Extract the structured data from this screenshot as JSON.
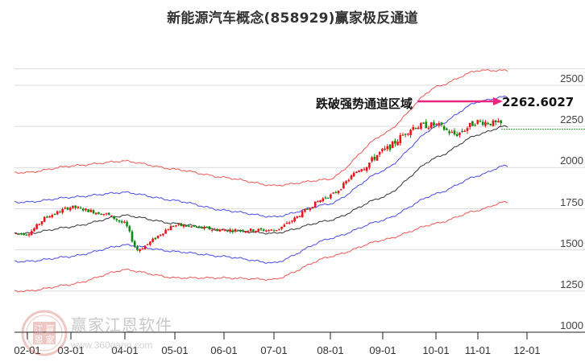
{
  "title": "新能源汽车概念(858929)赢家极反通道",
  "annotation": {
    "text": "跌破强势通道区域",
    "value": "2262.6027",
    "arrow_color": "#e8277e",
    "level_line_color": "#2e9b2e"
  },
  "watermark": {
    "name": "赢家江恩软件",
    "url": "www.360gann.com",
    "seal_chars": [
      "江",
      "赢",
      "恩",
      "家"
    ]
  },
  "colors": {
    "up": "#e8141a",
    "down": "#118a11",
    "outer_band": "#e83a3a",
    "inner_band": "#2a2ae0",
    "mid_line": "#222222",
    "grid": "#dddddd",
    "axis": "#222222"
  },
  "chart_data": {
    "type": "candlestick",
    "title": "新能源汽车概念(858929)赢家极反通道",
    "xlabel": "",
    "ylabel": "",
    "ylim": [
      1000,
      2600
    ],
    "y_ticks": [
      2500,
      2250,
      2000,
      1750,
      1500,
      1250,
      1000
    ],
    "x_ticks": [
      "02-01",
      "03-01",
      "04-01",
      "05-01",
      "06-01",
      "07-01",
      "08-01",
      "09-01",
      "10-01",
      "11-01",
      "12-01"
    ],
    "grid": true,
    "annotations": [
      {
        "text": "跌破强势通道区域",
        "type": "label"
      },
      {
        "text": "2262.6027",
        "type": "arrow-target",
        "value": 2262.6027
      }
    ],
    "series": [
      {
        "name": "outer_upper_band",
        "color": "#e83a3a",
        "x": [
          "02-01",
          "03-01",
          "04-01",
          "05-01",
          "06-01",
          "07-01",
          "08-01",
          "09-01",
          "10-01",
          "11-01",
          "11-20"
        ],
        "values": [
          1970,
          2010,
          2040,
          1990,
          1940,
          1890,
          1930,
          2200,
          2490,
          2590,
          2590
        ]
      },
      {
        "name": "inner_upper_band",
        "color": "#2a2ae0",
        "x": [
          "02-01",
          "03-01",
          "04-01",
          "05-01",
          "06-01",
          "07-01",
          "08-01",
          "09-01",
          "10-01",
          "11-01",
          "11-20"
        ],
        "values": [
          1790,
          1820,
          1850,
          1800,
          1740,
          1700,
          1780,
          1980,
          2250,
          2400,
          2430
        ]
      },
      {
        "name": "mid_line",
        "color": "#222222",
        "x": [
          "02-01",
          "03-01",
          "04-01",
          "05-01",
          "06-01",
          "07-01",
          "08-01",
          "09-01",
          "10-01",
          "11-01",
          "11-20"
        ],
        "values": [
          1600,
          1640,
          1710,
          1660,
          1620,
          1600,
          1680,
          1820,
          2060,
          2200,
          2250
        ]
      },
      {
        "name": "inner_lower_band",
        "color": "#2a2ae0",
        "x": [
          "02-01",
          "03-01",
          "04-01",
          "05-01",
          "06-01",
          "07-01",
          "08-01",
          "09-01",
          "10-01",
          "11-01",
          "11-20"
        ],
        "values": [
          1430,
          1460,
          1530,
          1490,
          1460,
          1420,
          1570,
          1680,
          1840,
          1950,
          2010
        ]
      },
      {
        "name": "outer_lower_band",
        "color": "#e83a3a",
        "x": [
          "02-01",
          "03-01",
          "04-01",
          "05-01",
          "06-01",
          "07-01",
          "08-01",
          "09-01",
          "10-01",
          "11-01",
          "11-20"
        ],
        "values": [
          1250,
          1290,
          1380,
          1330,
          1330,
          1320,
          1460,
          1560,
          1660,
          1740,
          1790
        ]
      }
    ],
    "price_path_approx": {
      "x": [
        "02-01",
        "02-15",
        "03-01",
        "03-20",
        "04-01",
        "04-10",
        "05-01",
        "06-01",
        "07-01",
        "08-01",
        "08-20",
        "09-01",
        "09-20",
        "10-01",
        "10-15",
        "11-01",
        "11-20"
      ],
      "close": [
        1600,
        1710,
        1760,
        1720,
        1660,
        1500,
        1650,
        1620,
        1620,
        1830,
        2000,
        2100,
        2250,
        2260,
        2200,
        2280,
        2262
      ]
    },
    "legend": []
  }
}
